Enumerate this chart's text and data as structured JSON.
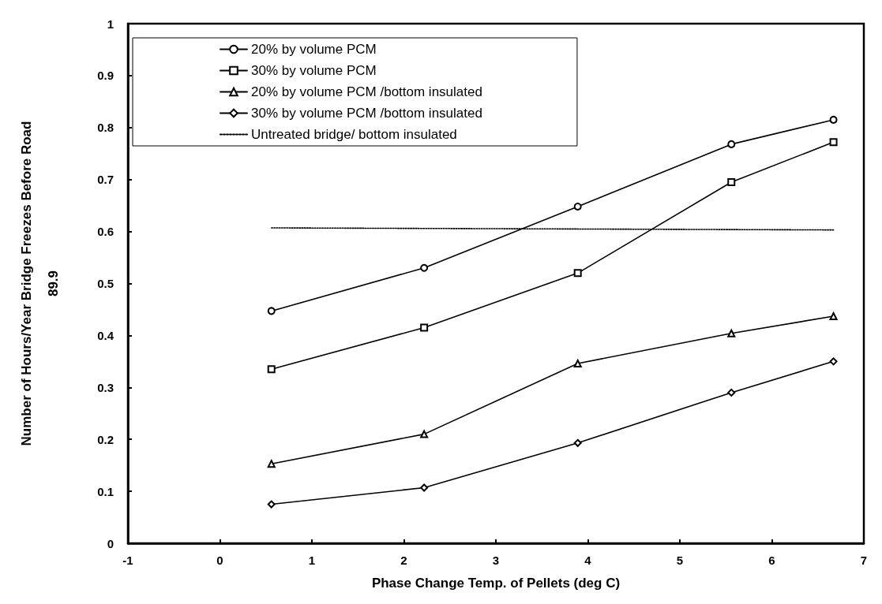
{
  "chart_data": {
    "type": "line",
    "xlabel": "Phase Change Temp. of Pellets (deg C)",
    "ylabel": "Number of Hours/Year Bridge Freezes Before Road\n89.9",
    "x": [
      0.56,
      2.22,
      3.89,
      5.56,
      6.67
    ],
    "series": [
      {
        "name": "20% by volume PCM",
        "color": "#000000",
        "marker": "circle",
        "values": [
          0.447,
          0.53,
          0.648,
          0.768,
          0.815
        ]
      },
      {
        "name": "30% by volume PCM",
        "color": "#000000",
        "marker": "square",
        "values": [
          0.335,
          0.415,
          0.52,
          0.695,
          0.772
        ]
      },
      {
        "name": "20% by volume PCM /bottom insulated",
        "color": "#000000",
        "marker": "triangle",
        "values": [
          0.153,
          0.21,
          0.346,
          0.404,
          0.437
        ]
      },
      {
        "name": "30% by volume PCM /bottom insulated",
        "color": "#000000",
        "marker": "diamond",
        "values": [
          0.075,
          0.107,
          0.193,
          0.29,
          0.35
        ]
      },
      {
        "name": "Untreated bridge/ bottom insulated",
        "color": "#000000",
        "marker": "none",
        "line_style": "dotted",
        "x": [
          0.56,
          6.67
        ],
        "values": [
          0.607,
          0.603
        ]
      }
    ],
    "xlim": [
      -1,
      7
    ],
    "xticks": [
      -1,
      0,
      1,
      2,
      3,
      4,
      5,
      6,
      7
    ],
    "ylim": [
      0,
      1
    ],
    "yticks": [
      0,
      0.1,
      0.2,
      0.3,
      0.4,
      0.5,
      0.6,
      0.7,
      0.8,
      0.9,
      1
    ],
    "grid": false,
    "legend": "top left",
    "line_style": "solid"
  }
}
